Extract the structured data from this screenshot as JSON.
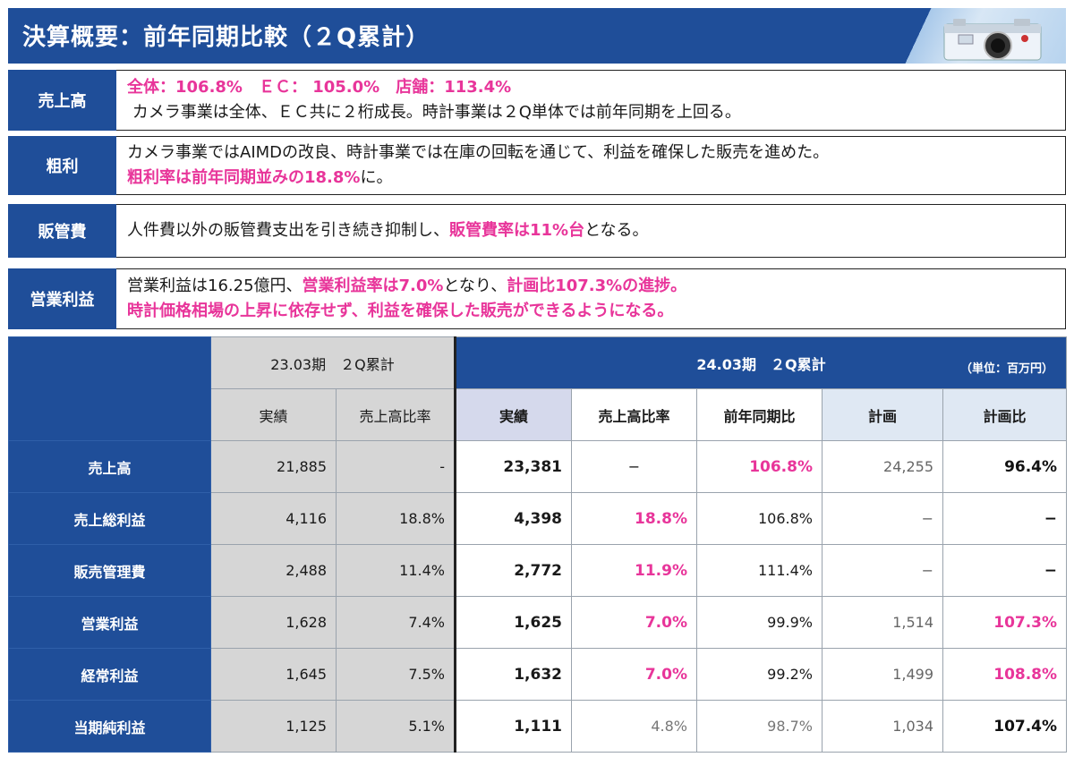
{
  "header": {
    "title": "決算概要：前年同期比較（２Q累計）"
  },
  "summary": {
    "sales": {
      "label": "売上高",
      "line1": "全体：106.8%　ＥＣ： 105.0%　店舗：113.4%",
      "line2": " カメラ事業は全体、ＥＣ共に２桁成長。時計事業は２Q単体では前年同期を上回る。"
    },
    "gross": {
      "label": "粗利",
      "line1": "カメラ事業ではAIMDの改良、時計事業では在庫の回転を通じて、利益を確保した販売を進めた。",
      "line2_pink": "粗利率は前年同期並みの18.8%",
      "line2_rest": "に。"
    },
    "sga": {
      "label": "販管費",
      "pre": "人件費以外の販管費支出を引き続き抑制し、",
      "pink": "販管費率は11%台",
      "post": "となる。"
    },
    "op": {
      "label": "営業利益",
      "pre": "営業利益は16.25億円、",
      "pink1": "営業利益率は7.0%",
      "mid": "となり、",
      "pink2": "計画比107.3%の進捗。",
      "line2": "時計価格相場の上昇に依存せず、利益を確保した販売ができるようになる。"
    }
  },
  "table": {
    "prev_header": "23.03期　２Q累計",
    "cur_header": "24.03期　２Q累計",
    "unit": "（単位：百万円）",
    "sub_headers": {
      "prev_actual": "実績",
      "prev_ratio": "売上高比率",
      "actual": "実績",
      "ratio": "売上高比率",
      "yoy": "前年同期比",
      "plan": "計画",
      "plan_ratio": "計画比"
    },
    "rows": [
      {
        "label": "売上高",
        "prev_actual": "21,885",
        "prev_ratio": "-",
        "actual": "23,381",
        "ratio": "−",
        "yoy": "106.8%",
        "plan": "24,255",
        "plan_ratio": "96.4%"
      },
      {
        "label": "売上総利益",
        "prev_actual": "4,116",
        "prev_ratio": "18.8%",
        "actual": "4,398",
        "ratio": "18.8%",
        "yoy": "106.8%",
        "plan": "−",
        "plan_ratio": "−"
      },
      {
        "label": "販売管理費",
        "prev_actual": "2,488",
        "prev_ratio": "11.4%",
        "actual": "2,772",
        "ratio": "11.9%",
        "yoy": "111.4%",
        "plan": "−",
        "plan_ratio": "−"
      },
      {
        "label": "営業利益",
        "prev_actual": "1,628",
        "prev_ratio": "7.4%",
        "actual": "1,625",
        "ratio": "7.0%",
        "yoy": "99.9%",
        "plan": "1,514",
        "plan_ratio": "107.3%"
      },
      {
        "label": "経常利益",
        "prev_actual": "1,645",
        "prev_ratio": "7.5%",
        "actual": "1,632",
        "ratio": "7.0%",
        "yoy": "99.2%",
        "plan": "1,499",
        "plan_ratio": "108.8%"
      },
      {
        "label": "当期純利益",
        "prev_actual": "1,125",
        "prev_ratio": "5.1%",
        "actual": "1,111",
        "ratio": "4.8%",
        "yoy": "98.7%",
        "plan": "1,034",
        "plan_ratio": "107.4%"
      }
    ]
  },
  "colors": {
    "navy": "#1f4e99",
    "pink": "#e8359a",
    "grey_fill": "#d6d6d6"
  },
  "icons": {
    "header_deco": "camera-icon"
  }
}
